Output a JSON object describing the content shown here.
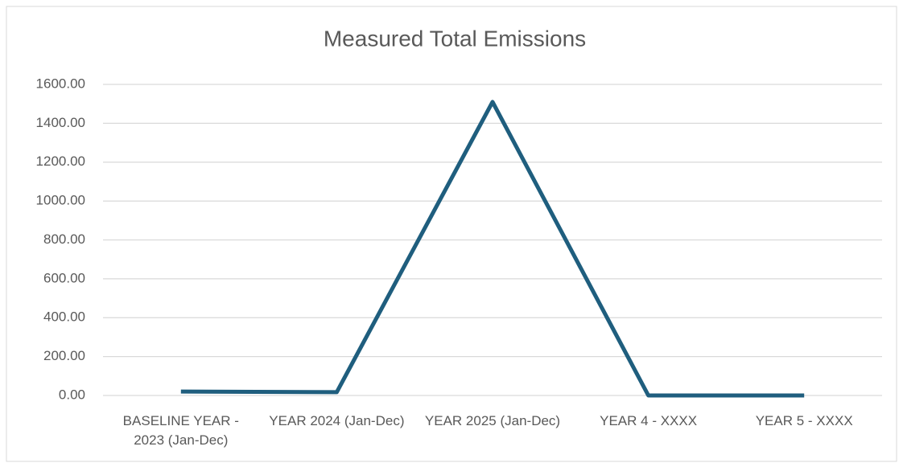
{
  "chart_data": {
    "type": "line",
    "title": "Measured Total Emissions",
    "categories": [
      "BASELINE YEAR - 2023 (Jan-Dec)",
      "YEAR 2024 (Jan-Dec)",
      "YEAR 2025 (Jan-Dec)",
      "YEAR 4 - XXXX",
      "YEAR 5 - XXXX"
    ],
    "series": [
      {
        "name": "Measured Total Emissions",
        "color": "#1f5e7e",
        "values": [
          20,
          17,
          1510,
          0,
          0
        ]
      }
    ],
    "ylim": [
      0,
      1600
    ],
    "yticks": [
      {
        "value": 0,
        "label": "0.00"
      },
      {
        "value": 200,
        "label": "200.00"
      },
      {
        "value": 400,
        "label": "400.00"
      },
      {
        "value": 600,
        "label": "600.00"
      },
      {
        "value": 800,
        "label": "800.00"
      },
      {
        "value": 1000,
        "label": "1000.00"
      },
      {
        "value": 1200,
        "label": "1200.00"
      },
      {
        "value": 1400,
        "label": "1400.00"
      },
      {
        "value": 1600,
        "label": "1600.00"
      }
    ],
    "grid": true
  }
}
